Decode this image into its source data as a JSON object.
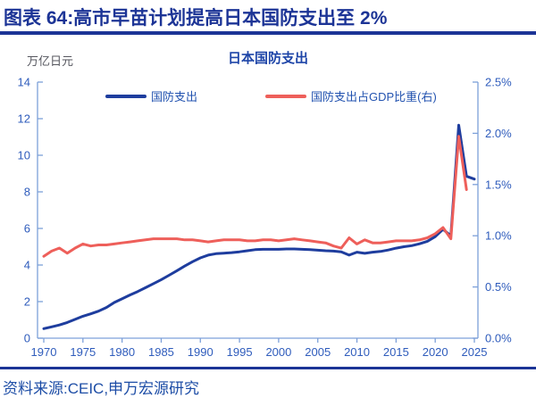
{
  "header": {
    "title": "图表 64:高市早苗计划提高日本国防支出至 2%"
  },
  "source": {
    "text": "资料来源:CEIC,申万宏源研究"
  },
  "colors": {
    "accent": "#1c3496",
    "chart_title": "#1e45a8",
    "unit_text": "#55565e",
    "legend_text": "#2353b0",
    "tick_label": "#2f5cbc",
    "axis_line": "#7da0d9",
    "source_text": "#1d4da6",
    "line_blue": "#1e3d9e",
    "line_red": "#ee5f5a"
  },
  "chart_data": {
    "type": "line",
    "title": "日本国防支出",
    "unit_label": "万亿日元",
    "legend_position": "top",
    "grid": false,
    "x": [
      1970,
      1971,
      1972,
      1973,
      1974,
      1975,
      1976,
      1977,
      1978,
      1979,
      1980,
      1981,
      1982,
      1983,
      1984,
      1985,
      1986,
      1987,
      1988,
      1989,
      1990,
      1991,
      1992,
      1993,
      1994,
      1995,
      1996,
      1997,
      1998,
      1999,
      2000,
      2001,
      2002,
      2003,
      2004,
      2005,
      2006,
      2007,
      2008,
      2009,
      2010,
      2011,
      2012,
      2013,
      2014,
      2015,
      2016,
      2017,
      2018,
      2019,
      2020,
      2021,
      2022,
      2023,
      2024,
      2025
    ],
    "x_ticks": [
      1970,
      1975,
      1980,
      1985,
      1990,
      1995,
      2000,
      2005,
      2010,
      2015,
      2020,
      2025
    ],
    "left_axis": {
      "label": "万亿日元",
      "range": [
        0,
        14
      ],
      "ticks": [
        0,
        2,
        4,
        6,
        8,
        10,
        12,
        14
      ],
      "tick_labels": [
        "0",
        "2",
        "4",
        "6",
        "8",
        "10",
        "12",
        "14"
      ]
    },
    "right_axis": {
      "range": [
        0,
        2.5
      ],
      "ticks": [
        0,
        0.5,
        1.0,
        1.5,
        2.0,
        2.5
      ],
      "tick_labels": [
        "0.0%",
        "0.5%",
        "1.0%",
        "1.5%",
        "2.0%",
        "2.5%"
      ]
    },
    "series": [
      {
        "name": "国防支出",
        "axis": "left",
        "color": "#1e3d9e",
        "data_name": "series-line-defense-spending",
        "values": [
          0.52,
          0.62,
          0.72,
          0.86,
          1.03,
          1.2,
          1.33,
          1.48,
          1.68,
          1.95,
          2.15,
          2.36,
          2.55,
          2.76,
          2.98,
          3.2,
          3.44,
          3.69,
          3.94,
          4.18,
          4.39,
          4.54,
          4.62,
          4.65,
          4.68,
          4.72,
          4.78,
          4.84,
          4.86,
          4.86,
          4.86,
          4.88,
          4.88,
          4.86,
          4.84,
          4.81,
          4.78,
          4.76,
          4.72,
          4.54,
          4.7,
          4.64,
          4.7,
          4.74,
          4.82,
          4.92,
          5.0,
          5.06,
          5.16,
          5.3,
          5.55,
          5.95,
          5.6,
          11.65,
          8.85,
          8.7
        ]
      },
      {
        "name": "国防支出占GDP比重(右)",
        "axis": "right",
        "color": "#ee5f5a",
        "data_name": "series-line-gdp-share",
        "values": [
          0.8,
          0.85,
          0.88,
          0.83,
          0.88,
          0.92,
          0.9,
          0.91,
          0.91,
          0.92,
          0.93,
          0.94,
          0.95,
          0.96,
          0.97,
          0.97,
          0.97,
          0.97,
          0.96,
          0.96,
          0.95,
          0.94,
          0.95,
          0.96,
          0.96,
          0.96,
          0.95,
          0.95,
          0.96,
          0.96,
          0.95,
          0.96,
          0.97,
          0.96,
          0.95,
          0.94,
          0.93,
          0.9,
          0.88,
          0.98,
          0.92,
          0.96,
          0.93,
          0.93,
          0.94,
          0.95,
          0.95,
          0.95,
          0.96,
          0.98,
          1.02,
          1.08,
          0.97,
          1.97,
          1.45,
          null
        ]
      }
    ]
  }
}
